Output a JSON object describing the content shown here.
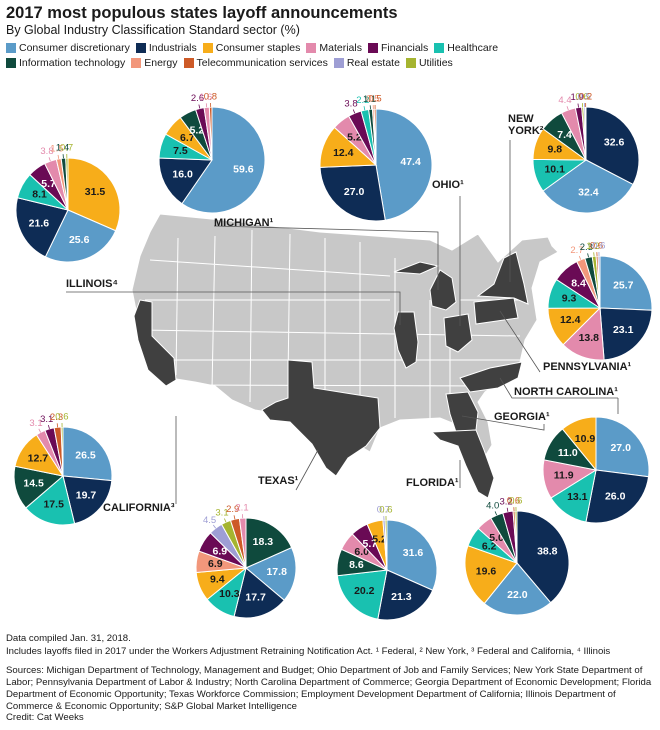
{
  "title": "2017 most populous states layoff announcements",
  "subtitle": "By Global Industry Classification Standard sector (%)",
  "colors": {
    "Consumer discretionary": "#5b9bc8",
    "Industrials": "#0e2c55",
    "Consumer staples": "#f7ad1a",
    "Materials": "#e38aac",
    "Financials": "#6a0a55",
    "Healthcare": "#19c1b0",
    "Information technology": "#0f4a3d",
    "Energy": "#f2977b",
    "Telecommunication services": "#cd5a27",
    "Real estate": "#9e9ed4",
    "Utilities": "#a5b430",
    "map_highlight": "#404040",
    "map_base": "#c8c8c8"
  },
  "legend": [
    "Consumer discretionary",
    "Industrials",
    "Consumer staples",
    "Materials",
    "Financials",
    "Healthcare",
    "Information technology",
    "Energy",
    "Telecommunication services",
    "Real estate",
    "Utilities"
  ],
  "chart_data": [
    {
      "type": "pie",
      "state": "MICHIGAN",
      "footnote": "1",
      "slices": [
        {
          "sector": "Consumer discretionary",
          "value": 59.6
        },
        {
          "sector": "Industrials",
          "value": 16.0
        },
        {
          "sector": "Healthcare",
          "value": 7.5
        },
        {
          "sector": "Consumer staples",
          "value": 6.7
        },
        {
          "sector": "Information technology",
          "value": 5.2
        },
        {
          "sector": "Financials",
          "value": 2.6
        },
        {
          "sector": "Materials",
          "value": 1.6
        },
        {
          "sector": "Telecommunication services",
          "value": 0.8
        }
      ]
    },
    {
      "type": "pie",
      "state": "OHIO",
      "footnote": "1",
      "slices": [
        {
          "sector": "Consumer discretionary",
          "value": 47.4
        },
        {
          "sector": "Industrials",
          "value": 27.0
        },
        {
          "sector": "Consumer staples",
          "value": 12.4
        },
        {
          "sector": "Materials",
          "value": 5.2
        },
        {
          "sector": "Financials",
          "value": 3.8
        },
        {
          "sector": "Healthcare",
          "value": 2.2
        },
        {
          "sector": "Information technology",
          "value": 1.1
        },
        {
          "sector": "Energy",
          "value": 0.5
        },
        {
          "sector": "Telecommunication services",
          "value": 0.5
        }
      ]
    },
    {
      "type": "pie",
      "state": "NEW YORK",
      "footnote": "2",
      "slices": [
        {
          "sector": "Industrials",
          "value": 32.6
        },
        {
          "sector": "Consumer discretionary",
          "value": 32.4
        },
        {
          "sector": "Healthcare",
          "value": 10.1
        },
        {
          "sector": "Consumer staples",
          "value": 9.8
        },
        {
          "sector": "Information technology",
          "value": 7.4
        },
        {
          "sector": "Materials",
          "value": 4.4
        },
        {
          "sector": "Financials",
          "value": 1.9
        },
        {
          "sector": "Utilities",
          "value": 0.6
        },
        {
          "sector": "Real estate",
          "value": 0.5
        },
        {
          "sector": "Telecommunication services",
          "value": 0.2
        }
      ]
    },
    {
      "type": "pie",
      "state": "ILLINOIS",
      "footnote": "4",
      "slices": [
        {
          "sector": "Consumer staples",
          "value": 31.5
        },
        {
          "sector": "Consumer discretionary",
          "value": 25.6
        },
        {
          "sector": "Industrials",
          "value": 21.6
        },
        {
          "sector": "Healthcare",
          "value": 8.1
        },
        {
          "sector": "Financials",
          "value": 5.7
        },
        {
          "sector": "Materials",
          "value": 3.8
        },
        {
          "sector": "Energy",
          "value": 1.5
        },
        {
          "sector": "Information technology",
          "value": 1.4
        },
        {
          "sector": "Utilities",
          "value": 0.7
        }
      ]
    },
    {
      "type": "pie",
      "state": "PENNSYLVANIA",
      "footnote": "1",
      "slices": [
        {
          "sector": "Consumer discretionary",
          "value": 25.7
        },
        {
          "sector": "Industrials",
          "value": 23.1
        },
        {
          "sector": "Materials",
          "value": 13.8
        },
        {
          "sector": "Consumer staples",
          "value": 12.4
        },
        {
          "sector": "Healthcare",
          "value": 9.3
        },
        {
          "sector": "Financials",
          "value": 8.4
        },
        {
          "sector": "Energy",
          "value": 2.7
        },
        {
          "sector": "Information technology",
          "value": 2.3
        },
        {
          "sector": "Utilities",
          "value": 1.2
        },
        {
          "sector": "Telecommunication services",
          "value": 0.6
        },
        {
          "sector": "Real estate",
          "value": 0.6
        }
      ]
    },
    {
      "type": "pie",
      "state": "NORTH CAROLINA",
      "footnote": "1",
      "slices": [
        {
          "sector": "Consumer discretionary",
          "value": 27.0
        },
        {
          "sector": "Industrials",
          "value": 26.0
        },
        {
          "sector": "Healthcare",
          "value": 13.1
        },
        {
          "sector": "Materials",
          "value": 11.9
        },
        {
          "sector": "Information technology",
          "value": 11.0
        },
        {
          "sector": "Consumer staples",
          "value": 10.9
        }
      ]
    },
    {
      "type": "pie",
      "state": "CALIFORNIA",
      "footnote": "3",
      "slices": [
        {
          "sector": "Consumer discretionary",
          "value": 26.5
        },
        {
          "sector": "Industrials",
          "value": 19.7
        },
        {
          "sector": "Healthcare",
          "value": 17.5
        },
        {
          "sector": "Information technology",
          "value": 14.5
        },
        {
          "sector": "Consumer staples",
          "value": 12.7
        },
        {
          "sector": "Materials",
          "value": 3.1
        },
        {
          "sector": "Financials",
          "value": 3.1
        },
        {
          "sector": "Telecommunication services",
          "value": 2.3
        },
        {
          "sector": "Utilities",
          "value": 0.6
        }
      ]
    },
    {
      "type": "pie",
      "state": "TEXAS",
      "footnote": "1",
      "slices": [
        {
          "sector": "Information technology",
          "value": 18.3
        },
        {
          "sector": "Consumer discretionary",
          "value": 17.8
        },
        {
          "sector": "Industrials",
          "value": 17.7
        },
        {
          "sector": "Healthcare",
          "value": 10.3
        },
        {
          "sector": "Consumer staples",
          "value": 9.4
        },
        {
          "sector": "Energy",
          "value": 6.9
        },
        {
          "sector": "Financials",
          "value": 6.9
        },
        {
          "sector": "Real estate",
          "value": 4.5
        },
        {
          "sector": "Utilities",
          "value": 3.1
        },
        {
          "sector": "Telecommunication services",
          "value": 2.9
        },
        {
          "sector": "Materials",
          "value": 2.1
        }
      ]
    },
    {
      "type": "pie",
      "state": "FLORIDA",
      "footnote": "1",
      "slices": [
        {
          "sector": "Consumer discretionary",
          "value": 31.6
        },
        {
          "sector": "Industrials",
          "value": 21.3
        },
        {
          "sector": "Healthcare",
          "value": 20.2
        },
        {
          "sector": "Information technology",
          "value": 8.6
        },
        {
          "sector": "Materials",
          "value": 6.0
        },
        {
          "sector": "Financials",
          "value": 5.7
        },
        {
          "sector": "Consumer staples",
          "value": 5.2
        },
        {
          "sector": "Real estate",
          "value": 0.7
        },
        {
          "sector": "Utilities",
          "value": 0.6
        }
      ]
    },
    {
      "type": "pie",
      "state": "GEORGIA",
      "footnote": "1",
      "slices": [
        {
          "sector": "Industrials",
          "value": 38.8
        },
        {
          "sector": "Consumer discretionary",
          "value": 22.0
        },
        {
          "sector": "Consumer staples",
          "value": 19.6
        },
        {
          "sector": "Healthcare",
          "value": 6.2
        },
        {
          "sector": "Materials",
          "value": 5.0
        },
        {
          "sector": "Information technology",
          "value": 4.0
        },
        {
          "sector": "Financials",
          "value": 3.2
        },
        {
          "sector": "Telecommunication services",
          "value": 0.6
        },
        {
          "sector": "Utilities",
          "value": 0.6
        }
      ]
    }
  ],
  "footer": {
    "compiled": "Data compiled Jan. 31, 2018.",
    "includes": "Includes layoffs filed in 2017 under the Workers Adjustment Retraining Notification Act. ¹ Federal, ² New York, ³ Federal and California, ⁴ Illinois",
    "sources": "Sources: Michigan Department of Technology, Management and Budget; Ohio Department of Job and Family Services; New York State Department of Labor; Pennsylvania Department of Labor & Industry; North Carolina Department of Commerce; Georgia Department of Economic Development; Florida Department of Economic Opportunity; Texas Workforce Commission; Employment Development Department of California; Illinois Department of Commerce & Economic Opportunity; S&P Global Market Intelligence",
    "credit": "Credit: Cat Weeks"
  }
}
